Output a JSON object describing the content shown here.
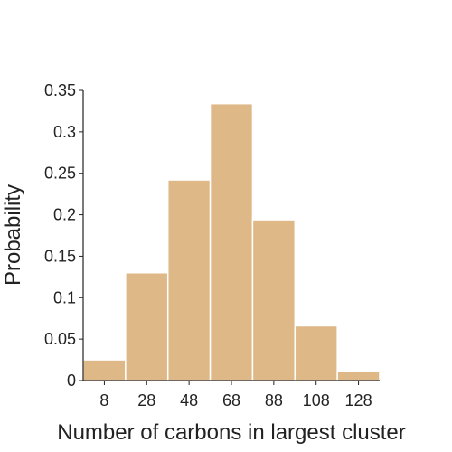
{
  "chart_data": {
    "type": "bar",
    "title": "",
    "xlabel": "Number of carbons in largest cluster",
    "ylabel": "Probability",
    "bin_edges": [
      -2,
      18,
      38,
      58,
      78,
      98,
      118,
      138
    ],
    "values": [
      0.025,
      0.13,
      0.242,
      0.334,
      0.194,
      0.066,
      0.011
    ],
    "xlim": [
      -2,
      138
    ],
    "ylim": [
      0,
      0.35
    ],
    "x_ticks": [
      8,
      28,
      48,
      68,
      88,
      108,
      128
    ],
    "x_tick_labels": [
      "8",
      "28",
      "48",
      "68",
      "88",
      "108",
      "128"
    ],
    "y_ticks": [
      0,
      0.05,
      0.1,
      0.15,
      0.2,
      0.25,
      0.3,
      0.35
    ],
    "y_tick_labels": [
      "0",
      "0.05",
      "0.1",
      "0.15",
      "0.2",
      "0.25",
      "0.3",
      "0.35"
    ],
    "grid": false,
    "bar_color": "#deb887",
    "bar_edge_color": "#ffffff",
    "axis_color": "#222222"
  }
}
